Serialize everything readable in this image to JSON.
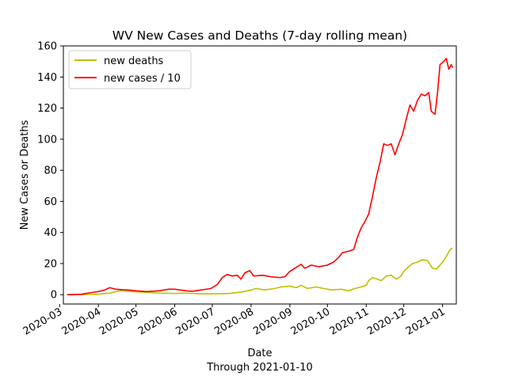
{
  "chart_data": {
    "type": "line",
    "title": "WV New Cases and Deaths (7-day rolling mean)",
    "xlabel": "Date",
    "xlabel_sub": "Through 2021-01-10",
    "ylabel": "New Cases or Deaths",
    "xlim": [
      "2020-03-04",
      "2021-01-12"
    ],
    "ylim": [
      -6,
      160
    ],
    "y_ticks": [
      0,
      20,
      40,
      60,
      80,
      100,
      120,
      140,
      160
    ],
    "x_ticks": [
      "2020-03",
      "2020-04",
      "2020-05",
      "2020-06",
      "2020-07",
      "2020-08",
      "2020-09",
      "2020-10",
      "2020-11",
      "2020-12",
      "2021-01"
    ],
    "grid": false,
    "legend_position": "upper-left",
    "series": [
      {
        "name": "new deaths",
        "color": "#bfbf00",
        "points": [
          [
            "2020-03-07",
            0
          ],
          [
            "2020-03-20",
            0
          ],
          [
            "2020-04-01",
            0.3
          ],
          [
            "2020-04-10",
            1.0
          ],
          [
            "2020-04-18",
            2.5
          ],
          [
            "2020-04-25",
            2.2
          ],
          [
            "2020-05-01",
            1.8
          ],
          [
            "2020-05-10",
            1.5
          ],
          [
            "2020-05-20",
            1.0
          ],
          [
            "2020-06-01",
            0.8
          ],
          [
            "2020-06-10",
            1.0
          ],
          [
            "2020-06-20",
            0.6
          ],
          [
            "2020-07-01",
            0.5
          ],
          [
            "2020-07-15",
            0.8
          ],
          [
            "2020-07-25",
            1.8
          ],
          [
            "2020-08-01",
            3.0
          ],
          [
            "2020-08-05",
            4.0
          ],
          [
            "2020-08-12",
            3.0
          ],
          [
            "2020-08-20",
            4.0
          ],
          [
            "2020-08-25",
            5.0
          ],
          [
            "2020-09-01",
            5.5
          ],
          [
            "2020-09-06",
            4.5
          ],
          [
            "2020-09-10",
            6.0
          ],
          [
            "2020-09-15",
            4.0
          ],
          [
            "2020-09-22",
            5.0
          ],
          [
            "2020-09-28",
            4.0
          ],
          [
            "2020-10-05",
            3.0
          ],
          [
            "2020-10-12",
            3.5
          ],
          [
            "2020-10-18",
            2.5
          ],
          [
            "2020-10-23",
            4.0
          ],
          [
            "2020-10-28",
            5.0
          ],
          [
            "2020-11-01",
            6.0
          ],
          [
            "2020-11-03",
            9.0
          ],
          [
            "2020-11-06",
            11.0
          ],
          [
            "2020-11-10",
            10.0
          ],
          [
            "2020-11-13",
            9.0
          ],
          [
            "2020-11-17",
            12.0
          ],
          [
            "2020-11-21",
            12.5
          ],
          [
            "2020-11-25",
            10.0
          ],
          [
            "2020-11-29",
            12.0
          ],
          [
            "2020-12-01",
            15.0
          ],
          [
            "2020-12-05",
            18.0
          ],
          [
            "2020-12-08",
            20.0
          ],
          [
            "2020-12-12",
            21.0
          ],
          [
            "2020-12-16",
            22.5
          ],
          [
            "2020-12-20",
            22.0
          ],
          [
            "2020-12-24",
            17.0
          ],
          [
            "2020-12-27",
            16.5
          ],
          [
            "2020-12-30",
            19.0
          ],
          [
            "2021-01-02",
            22.0
          ],
          [
            "2021-01-05",
            26.0
          ],
          [
            "2021-01-07",
            29.0
          ],
          [
            "2021-01-09",
            30.0
          ]
        ]
      },
      {
        "name": "new cases / 10",
        "color": "#ff0000",
        "points": [
          [
            "2020-03-07",
            0
          ],
          [
            "2020-03-18",
            0.2
          ],
          [
            "2020-03-25",
            1.2
          ],
          [
            "2020-04-01",
            2.0
          ],
          [
            "2020-04-06",
            3.0
          ],
          [
            "2020-04-10",
            4.5
          ],
          [
            "2020-04-15",
            3.5
          ],
          [
            "2020-04-20",
            3.2
          ],
          [
            "2020-04-25",
            3.0
          ],
          [
            "2020-05-01",
            2.5
          ],
          [
            "2020-05-10",
            2.0
          ],
          [
            "2020-05-20",
            2.5
          ],
          [
            "2020-05-27",
            3.5
          ],
          [
            "2020-06-01",
            3.5
          ],
          [
            "2020-06-10",
            2.5
          ],
          [
            "2020-06-15",
            2.2
          ],
          [
            "2020-06-22",
            3.0
          ],
          [
            "2020-06-30",
            4.0
          ],
          [
            "2020-07-05",
            6.5
          ],
          [
            "2020-07-09",
            11.0
          ],
          [
            "2020-07-13",
            13.0
          ],
          [
            "2020-07-17",
            12.0
          ],
          [
            "2020-07-21",
            12.5
          ],
          [
            "2020-07-24",
            10.0
          ],
          [
            "2020-07-27",
            14.0
          ],
          [
            "2020-07-31",
            15.5
          ],
          [
            "2020-08-03",
            12.0
          ],
          [
            "2020-08-10",
            12.5
          ],
          [
            "2020-08-17",
            11.5
          ],
          [
            "2020-08-24",
            11.0
          ],
          [
            "2020-08-28",
            11.5
          ],
          [
            "2020-09-01",
            15.0
          ],
          [
            "2020-09-05",
            17.0
          ],
          [
            "2020-09-10",
            19.5
          ],
          [
            "2020-09-13",
            17.0
          ],
          [
            "2020-09-18",
            19.0
          ],
          [
            "2020-09-24",
            18.0
          ],
          [
            "2020-10-01",
            19.0
          ],
          [
            "2020-10-06",
            21.0
          ],
          [
            "2020-10-10",
            24.0
          ],
          [
            "2020-10-13",
            27.0
          ],
          [
            "2020-10-18",
            28.0
          ],
          [
            "2020-10-22",
            29.0
          ],
          [
            "2020-10-25",
            37.0
          ],
          [
            "2020-10-28",
            43.0
          ],
          [
            "2020-10-31",
            47.0
          ],
          [
            "2020-11-03",
            52.0
          ],
          [
            "2020-11-06",
            63.0
          ],
          [
            "2020-11-09",
            75.0
          ],
          [
            "2020-11-12",
            85.0
          ],
          [
            "2020-11-15",
            97.0
          ],
          [
            "2020-11-18",
            96.0
          ],
          [
            "2020-11-21",
            97.0
          ],
          [
            "2020-11-24",
            90.0
          ],
          [
            "2020-11-27",
            97.0
          ],
          [
            "2020-11-30",
            103.0
          ],
          [
            "2020-12-03",
            113.0
          ],
          [
            "2020-12-06",
            122.0
          ],
          [
            "2020-12-09",
            118.0
          ],
          [
            "2020-12-12",
            125.0
          ],
          [
            "2020-12-15",
            129.0
          ],
          [
            "2020-12-18",
            128.0
          ],
          [
            "2020-12-21",
            130.0
          ],
          [
            "2020-12-23",
            118.0
          ],
          [
            "2020-12-26",
            116.0
          ],
          [
            "2020-12-28",
            130.0
          ],
          [
            "2020-12-30",
            148.0
          ],
          [
            "2021-01-02",
            150.0
          ],
          [
            "2021-01-04",
            152.0
          ],
          [
            "2021-01-06",
            145.0
          ],
          [
            "2021-01-08",
            148.0
          ],
          [
            "2021-01-09",
            146.0
          ]
        ]
      }
    ]
  }
}
